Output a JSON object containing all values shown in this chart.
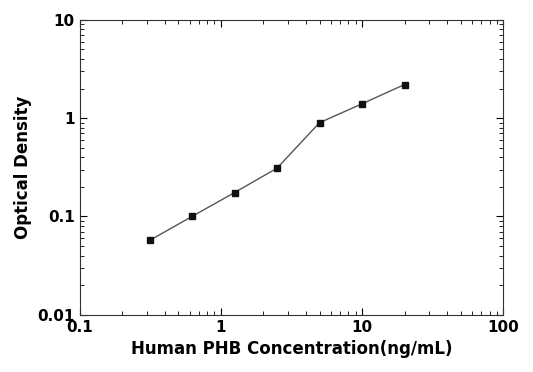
{
  "x": [
    0.313,
    0.625,
    1.25,
    2.5,
    5.0,
    10.0,
    20.0
  ],
  "y": [
    0.057,
    0.1,
    0.175,
    0.31,
    0.9,
    1.4,
    2.2
  ],
  "xlabel": "Human PHB Concentration(ng/mL)",
  "ylabel": "Optical Density",
  "xlim": [
    0.1,
    100
  ],
  "ylim": [
    0.01,
    10
  ],
  "line_color": "#555555",
  "marker_color": "#111111",
  "marker": "s",
  "marker_size": 5,
  "line_width": 1.0,
  "background_color": "#ffffff",
  "x_ticks": [
    0.1,
    1,
    10,
    100
  ],
  "y_ticks": [
    0.01,
    0.1,
    1,
    10
  ],
  "x_tick_labels": [
    "0.1",
    "1",
    "10",
    "100"
  ],
  "y_tick_labels": [
    "0.01",
    "0.1",
    "1",
    "10"
  ],
  "xlabel_fontsize": 12,
  "ylabel_fontsize": 12,
  "tick_fontsize": 11
}
